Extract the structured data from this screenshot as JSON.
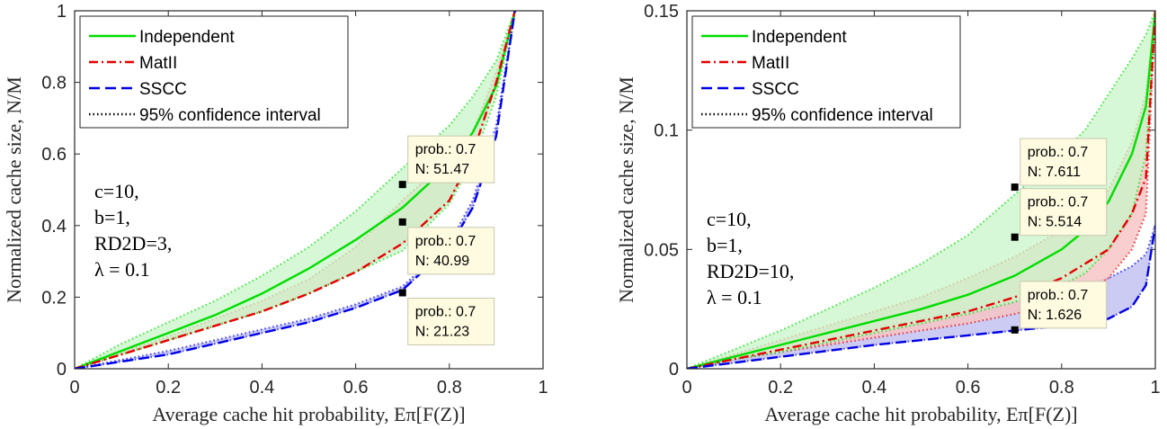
{
  "colors": {
    "independent": "#00dd00",
    "matll": "#e60000",
    "sscc": "#0000e6",
    "independent_fill": "#c8f5c8",
    "matll_fill": "#f7c6c6",
    "sscc_fill": "#c2c2f2",
    "overlap_fill": "#c8c28c",
    "tooltip_bg": "#fefbe0"
  },
  "chart_data": [
    {
      "type": "line",
      "xlabel": "Average cache hit probability, Eπ[F(Z)]",
      "ylabel": "Normalized cache size, N/M",
      "xlim": [
        0,
        1
      ],
      "ylim": [
        0,
        1
      ],
      "xticks": [
        "0",
        "0.2",
        "0.4",
        "0.6",
        "0.8",
        "1"
      ],
      "yticks": [
        "0",
        "0.2",
        "0.4",
        "0.6",
        "0.8",
        "1"
      ],
      "grid": false,
      "legend_position": "top-left",
      "legend": [
        "Independent",
        "MatII",
        "SSCC",
        "95% confidence interval"
      ],
      "annotation": [
        "c=10,",
        "b=1,",
        "RD2D=3,",
        "λ = 0.1"
      ],
      "x": [
        0,
        0.1,
        0.2,
        0.3,
        0.4,
        0.5,
        0.6,
        0.7,
        0.8,
        0.85,
        0.9,
        0.94
      ],
      "series": [
        {
          "name": "Independent",
          "values": [
            0,
            0.05,
            0.1,
            0.15,
            0.21,
            0.28,
            0.36,
            0.45,
            0.57,
            0.66,
            0.79,
            1.0
          ],
          "ci_low": [
            0,
            0.04,
            0.08,
            0.12,
            0.16,
            0.21,
            0.27,
            0.33,
            0.46,
            0.58,
            0.76,
            1.0
          ],
          "ci_high": [
            0,
            0.07,
            0.13,
            0.19,
            0.26,
            0.34,
            0.44,
            0.56,
            0.68,
            0.76,
            0.86,
            1.0
          ]
        },
        {
          "name": "MatII",
          "values": [
            0,
            0.04,
            0.08,
            0.12,
            0.16,
            0.21,
            0.27,
            0.35,
            0.47,
            0.6,
            0.8,
            1.0
          ],
          "ci_low": [
            0,
            0.04,
            0.08,
            0.12,
            0.16,
            0.21,
            0.27,
            0.35,
            0.47,
            0.6,
            0.8,
            1.0
          ],
          "ci_high": [
            0,
            0.045,
            0.09,
            0.14,
            0.19,
            0.25,
            0.34,
            0.47,
            0.59,
            0.66,
            0.83,
            1.0
          ]
        },
        {
          "name": "SSCC",
          "values": [
            0,
            0.02,
            0.04,
            0.07,
            0.1,
            0.13,
            0.17,
            0.22,
            0.34,
            0.45,
            0.65,
            1.0
          ],
          "ci_low": [
            0,
            0.02,
            0.04,
            0.07,
            0.1,
            0.13,
            0.17,
            0.22,
            0.34,
            0.45,
            0.65,
            1.0
          ],
          "ci_high": [
            0,
            0.025,
            0.05,
            0.08,
            0.11,
            0.14,
            0.18,
            0.23,
            0.35,
            0.47,
            0.68,
            1.0
          ]
        }
      ],
      "datatips": [
        {
          "x": 0.7,
          "y": 0.5147,
          "lines": [
            "prob.: 0.7",
            "N: 51.47"
          ],
          "side": "above"
        },
        {
          "x": 0.7,
          "y": 0.4099,
          "lines": [
            "prob.: 0.7",
            "N: 40.99"
          ],
          "side": "below"
        },
        {
          "x": 0.7,
          "y": 0.2123,
          "lines": [
            "prob.: 0.7",
            "N: 21.23"
          ],
          "side": "below"
        }
      ]
    },
    {
      "type": "line",
      "xlabel": "Average cache hit probability, Eπ[F(Z)]",
      "ylabel": "Normalized cache size, N/M",
      "xlim": [
        0,
        1
      ],
      "ylim": [
        0,
        0.15
      ],
      "xticks": [
        "0",
        "0.2",
        "0.4",
        "0.6",
        "0.8",
        "1"
      ],
      "yticks": [
        "0",
        "0.05",
        "0.1",
        "0.15"
      ],
      "grid": false,
      "legend_position": "top-left",
      "legend": [
        "Independent",
        "MatII",
        "SSCC",
        "95% confidence interval"
      ],
      "annotation": [
        "c=10,",
        "b=1,",
        "RD2D=10,",
        "λ = 0.1"
      ],
      "x": [
        0,
        0.1,
        0.2,
        0.3,
        0.4,
        0.5,
        0.6,
        0.7,
        0.8,
        0.85,
        0.9,
        0.95,
        0.98,
        1.0
      ],
      "series": [
        {
          "name": "Independent",
          "values": [
            0,
            0.005,
            0.01,
            0.015,
            0.02,
            0.025,
            0.031,
            0.039,
            0.05,
            0.058,
            0.07,
            0.09,
            0.11,
            0.15
          ],
          "ci_low": [
            0,
            0.004,
            0.007,
            0.011,
            0.015,
            0.019,
            0.023,
            0.028,
            0.035,
            0.04,
            0.05,
            0.065,
            0.09,
            0.15
          ],
          "ci_high": [
            0,
            0.008,
            0.016,
            0.025,
            0.034,
            0.044,
            0.056,
            0.073,
            0.09,
            0.1,
            0.115,
            0.13,
            0.14,
            0.15
          ]
        },
        {
          "name": "MatII",
          "values": [
            0,
            0.004,
            0.008,
            0.012,
            0.016,
            0.02,
            0.024,
            0.03,
            0.038,
            0.044,
            0.05,
            0.065,
            0.08,
            0.15
          ],
          "ci_low": [
            0,
            0.004,
            0.007,
            0.01,
            0.013,
            0.016,
            0.019,
            0.023,
            0.028,
            0.032,
            0.038,
            0.05,
            0.065,
            0.15
          ],
          "ci_high": [
            0,
            0.006,
            0.012,
            0.018,
            0.024,
            0.03,
            0.038,
            0.047,
            0.058,
            0.064,
            0.075,
            0.095,
            0.115,
            0.15
          ]
        },
        {
          "name": "SSCC",
          "values": [
            0,
            0.0025,
            0.005,
            0.0075,
            0.01,
            0.012,
            0.014,
            0.016,
            0.018,
            0.019,
            0.021,
            0.026,
            0.035,
            0.06
          ],
          "ci_low": [
            0,
            0.0025,
            0.005,
            0.0075,
            0.01,
            0.012,
            0.014,
            0.016,
            0.018,
            0.019,
            0.021,
            0.026,
            0.035,
            0.06
          ],
          "ci_high": [
            0,
            0.004,
            0.008,
            0.012,
            0.017,
            0.021,
            0.025,
            0.028,
            0.032,
            0.035,
            0.038,
            0.043,
            0.048,
            0.06
          ]
        }
      ],
      "datatips": [
        {
          "x": 0.7,
          "y": 0.07611,
          "lines": [
            "prob.: 0.7",
            "N: 7.611"
          ],
          "side": "above"
        },
        {
          "x": 0.7,
          "y": 0.05514,
          "lines": [
            "prob.: 0.7",
            "N: 5.514"
          ],
          "side": "above"
        },
        {
          "x": 0.7,
          "y": 0.01626,
          "lines": [
            "prob.: 0.7",
            "N: 1.626"
          ],
          "side": "above"
        }
      ]
    }
  ]
}
